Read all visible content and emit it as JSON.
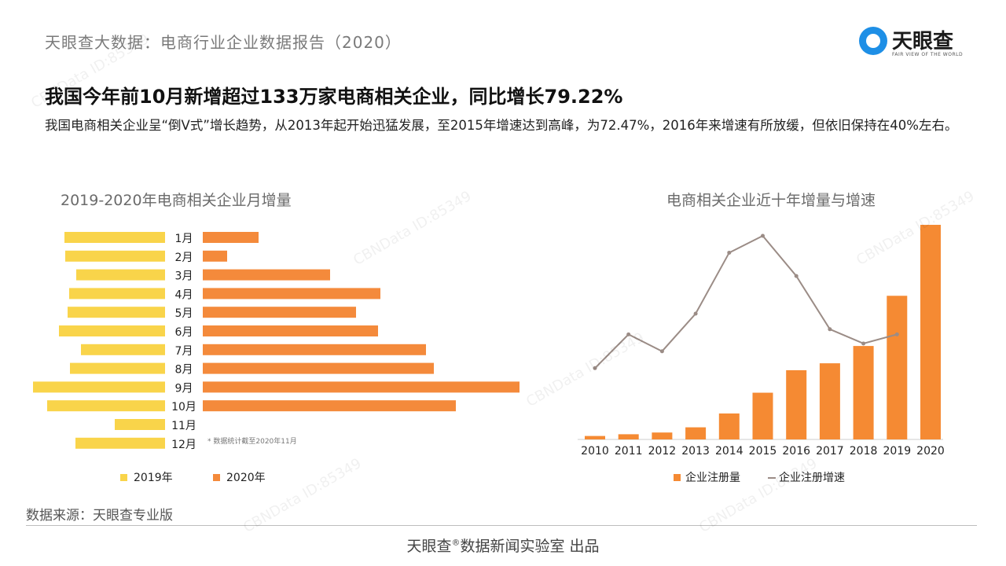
{
  "header": {
    "title": "天眼查大数据：电商行业企业数据报告（2020）"
  },
  "logo": {
    "name": "天眼查",
    "tagline": "FAIR VIEW OF THE WORLD"
  },
  "headline": "我国今年前10月新增超过133万家电商相关企业，同比增长79.22%",
  "subtext": "我国电商相关企业呈“倒V式”增长趋势，从2013年起开始迅猛发展，至2015年增速达到高峰，为72.47%，2016年来增速有所放缓，但依旧保持在40%左右。",
  "watermark": "CBNData ID:85349",
  "colors": {
    "y2019": "#f9d44a",
    "y2020": "#f48a3b",
    "bar": "#f58a33",
    "line": "#9b8c86"
  },
  "chart_data": [
    {
      "type": "bar",
      "title": "2019-2020年电商相关企业月增量",
      "orientation": "horizontal-butterfly",
      "categories": [
        "1月",
        "2月",
        "3月",
        "4月",
        "5月",
        "6月",
        "7月",
        "8月",
        "9月",
        "10月",
        "11月",
        "12月"
      ],
      "series": [
        {
          "name": "2019年",
          "values": [
            128,
            127,
            113,
            122,
            124,
            135,
            107,
            121,
            168,
            150,
            64,
            114
          ]
        },
        {
          "name": "2020年",
          "values": [
            71,
            31,
            162,
            226,
            195,
            223,
            284,
            294,
            403,
            322,
            null,
            null
          ]
        }
      ],
      "annotation": "* 数据统计截至2020年11月",
      "legend_position": "bottom"
    },
    {
      "type": "bar+line",
      "title": "电商相关企业近十年增量与增速",
      "categories": [
        "2010",
        "2011",
        "2012",
        "2013",
        "2014",
        "2015",
        "2016",
        "2017",
        "2018",
        "2019",
        "2020"
      ],
      "series": [
        {
          "name": "企业注册量",
          "type": "bar",
          "values": [
            2,
            3,
            4,
            7,
            15,
            27,
            40,
            44,
            54,
            83,
            124
          ]
        },
        {
          "name": "企业注册增速",
          "type": "line",
          "values": [
            18,
            44,
            31,
            60,
            107,
            120,
            89,
            48,
            37,
            44,
            null
          ]
        }
      ],
      "legend_position": "bottom"
    }
  ],
  "source": "数据来源：天眼查专业版",
  "footer": {
    "brand": "天眼查",
    "reg": "®",
    "rest": "数据新闻实验室 出品"
  }
}
